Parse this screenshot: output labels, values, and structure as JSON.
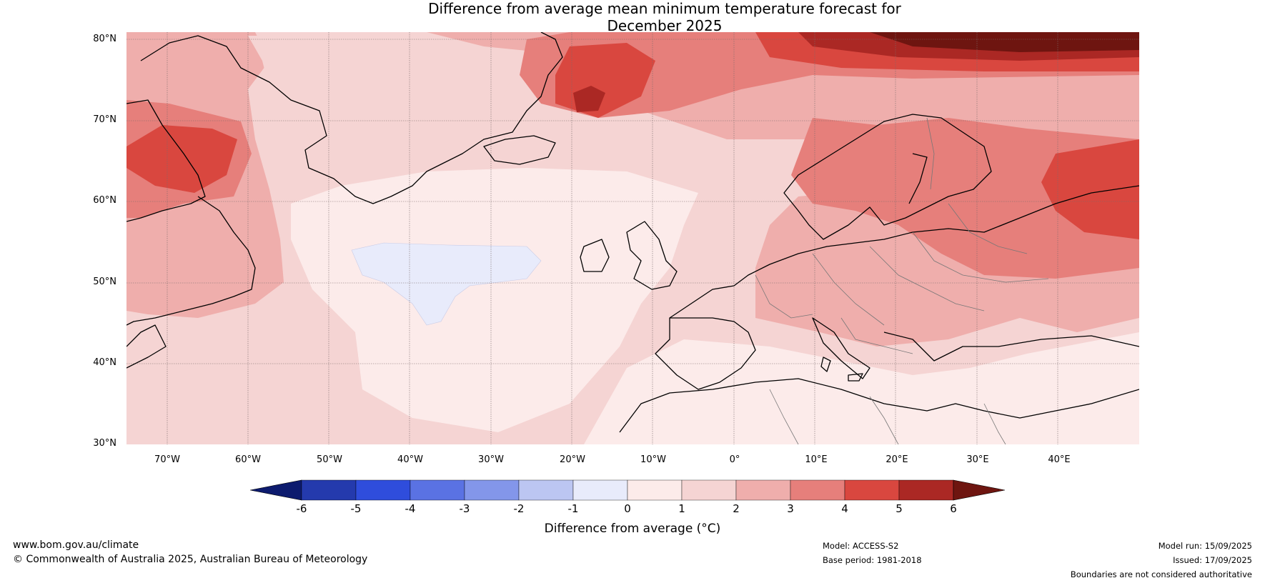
{
  "title_line1": "Difference from average mean minimum temperature forecast for",
  "title_line2": "December 2025",
  "lat_labels": [
    "80°N",
    "70°N",
    "60°N",
    "50°N",
    "40°N",
    "30°N"
  ],
  "lon_labels": [
    "70°W",
    "60°W",
    "50°W",
    "40°W",
    "30°W",
    "20°W",
    "10°W",
    "0°",
    "10°E",
    "20°E",
    "30°E",
    "40°E"
  ],
  "colorbar": {
    "ticks": [
      "-6",
      "-5",
      "-4",
      "-3",
      "-2",
      "-1",
      "0",
      "1",
      "2",
      "3",
      "4",
      "5",
      "6"
    ],
    "label": "Difference from average (°C)",
    "colors": [
      "#0d1b6e",
      "#243aad",
      "#2f4ddc",
      "#5a72e3",
      "#8396ea",
      "#bcc6f2",
      "#e8ebfb",
      "#fcebea",
      "#f5d4d3",
      "#efaeac",
      "#e67f7b",
      "#d9473f",
      "#ab2824",
      "#6e1510"
    ]
  },
  "footer": {
    "website": "www.bom.gov.au/climate",
    "copyright": "© Commonwealth of Australia 2025, Australian Bureau of Meteorology",
    "model": "Model: ACCESS-S2",
    "base_period": "Base period: 1981-2018",
    "model_run": "Model run: 15/09/2025",
    "issued": "Issued: 17/09/2025",
    "disclaimer": "Boundaries are not considered authoritative"
  }
}
